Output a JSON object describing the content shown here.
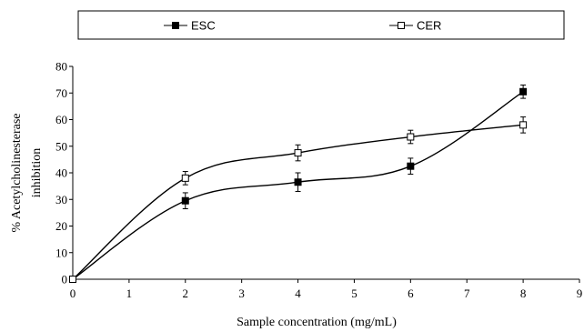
{
  "chart_data": {
    "type": "line",
    "xlabel": "Sample concentration (mg/mL)",
    "ylabel_lines": [
      "% Acetylcholinesterase",
      "inhibition"
    ],
    "xlim": [
      0,
      9
    ],
    "ylim": [
      0,
      80
    ],
    "x_ticks": [
      0,
      1,
      2,
      3,
      4,
      5,
      6,
      7,
      8,
      9
    ],
    "y_ticks": [
      0,
      10,
      20,
      30,
      40,
      50,
      60,
      70,
      80
    ],
    "grid": false,
    "legend_position": "top",
    "series": [
      {
        "name": "ESC",
        "marker": "filled-square",
        "color": "#000000",
        "x": [
          0,
          2,
          4,
          6,
          8
        ],
        "y": [
          0,
          29.5,
          36.5,
          42.5,
          70.5
        ],
        "error": [
          0,
          3,
          3.5,
          3,
          2.5
        ]
      },
      {
        "name": "CER",
        "marker": "open-square",
        "color": "#000000",
        "x": [
          0,
          2,
          4,
          6,
          8
        ],
        "y": [
          0,
          38,
          47.5,
          53.5,
          58
        ],
        "error": [
          0,
          2.5,
          3,
          2.5,
          3
        ]
      }
    ]
  }
}
